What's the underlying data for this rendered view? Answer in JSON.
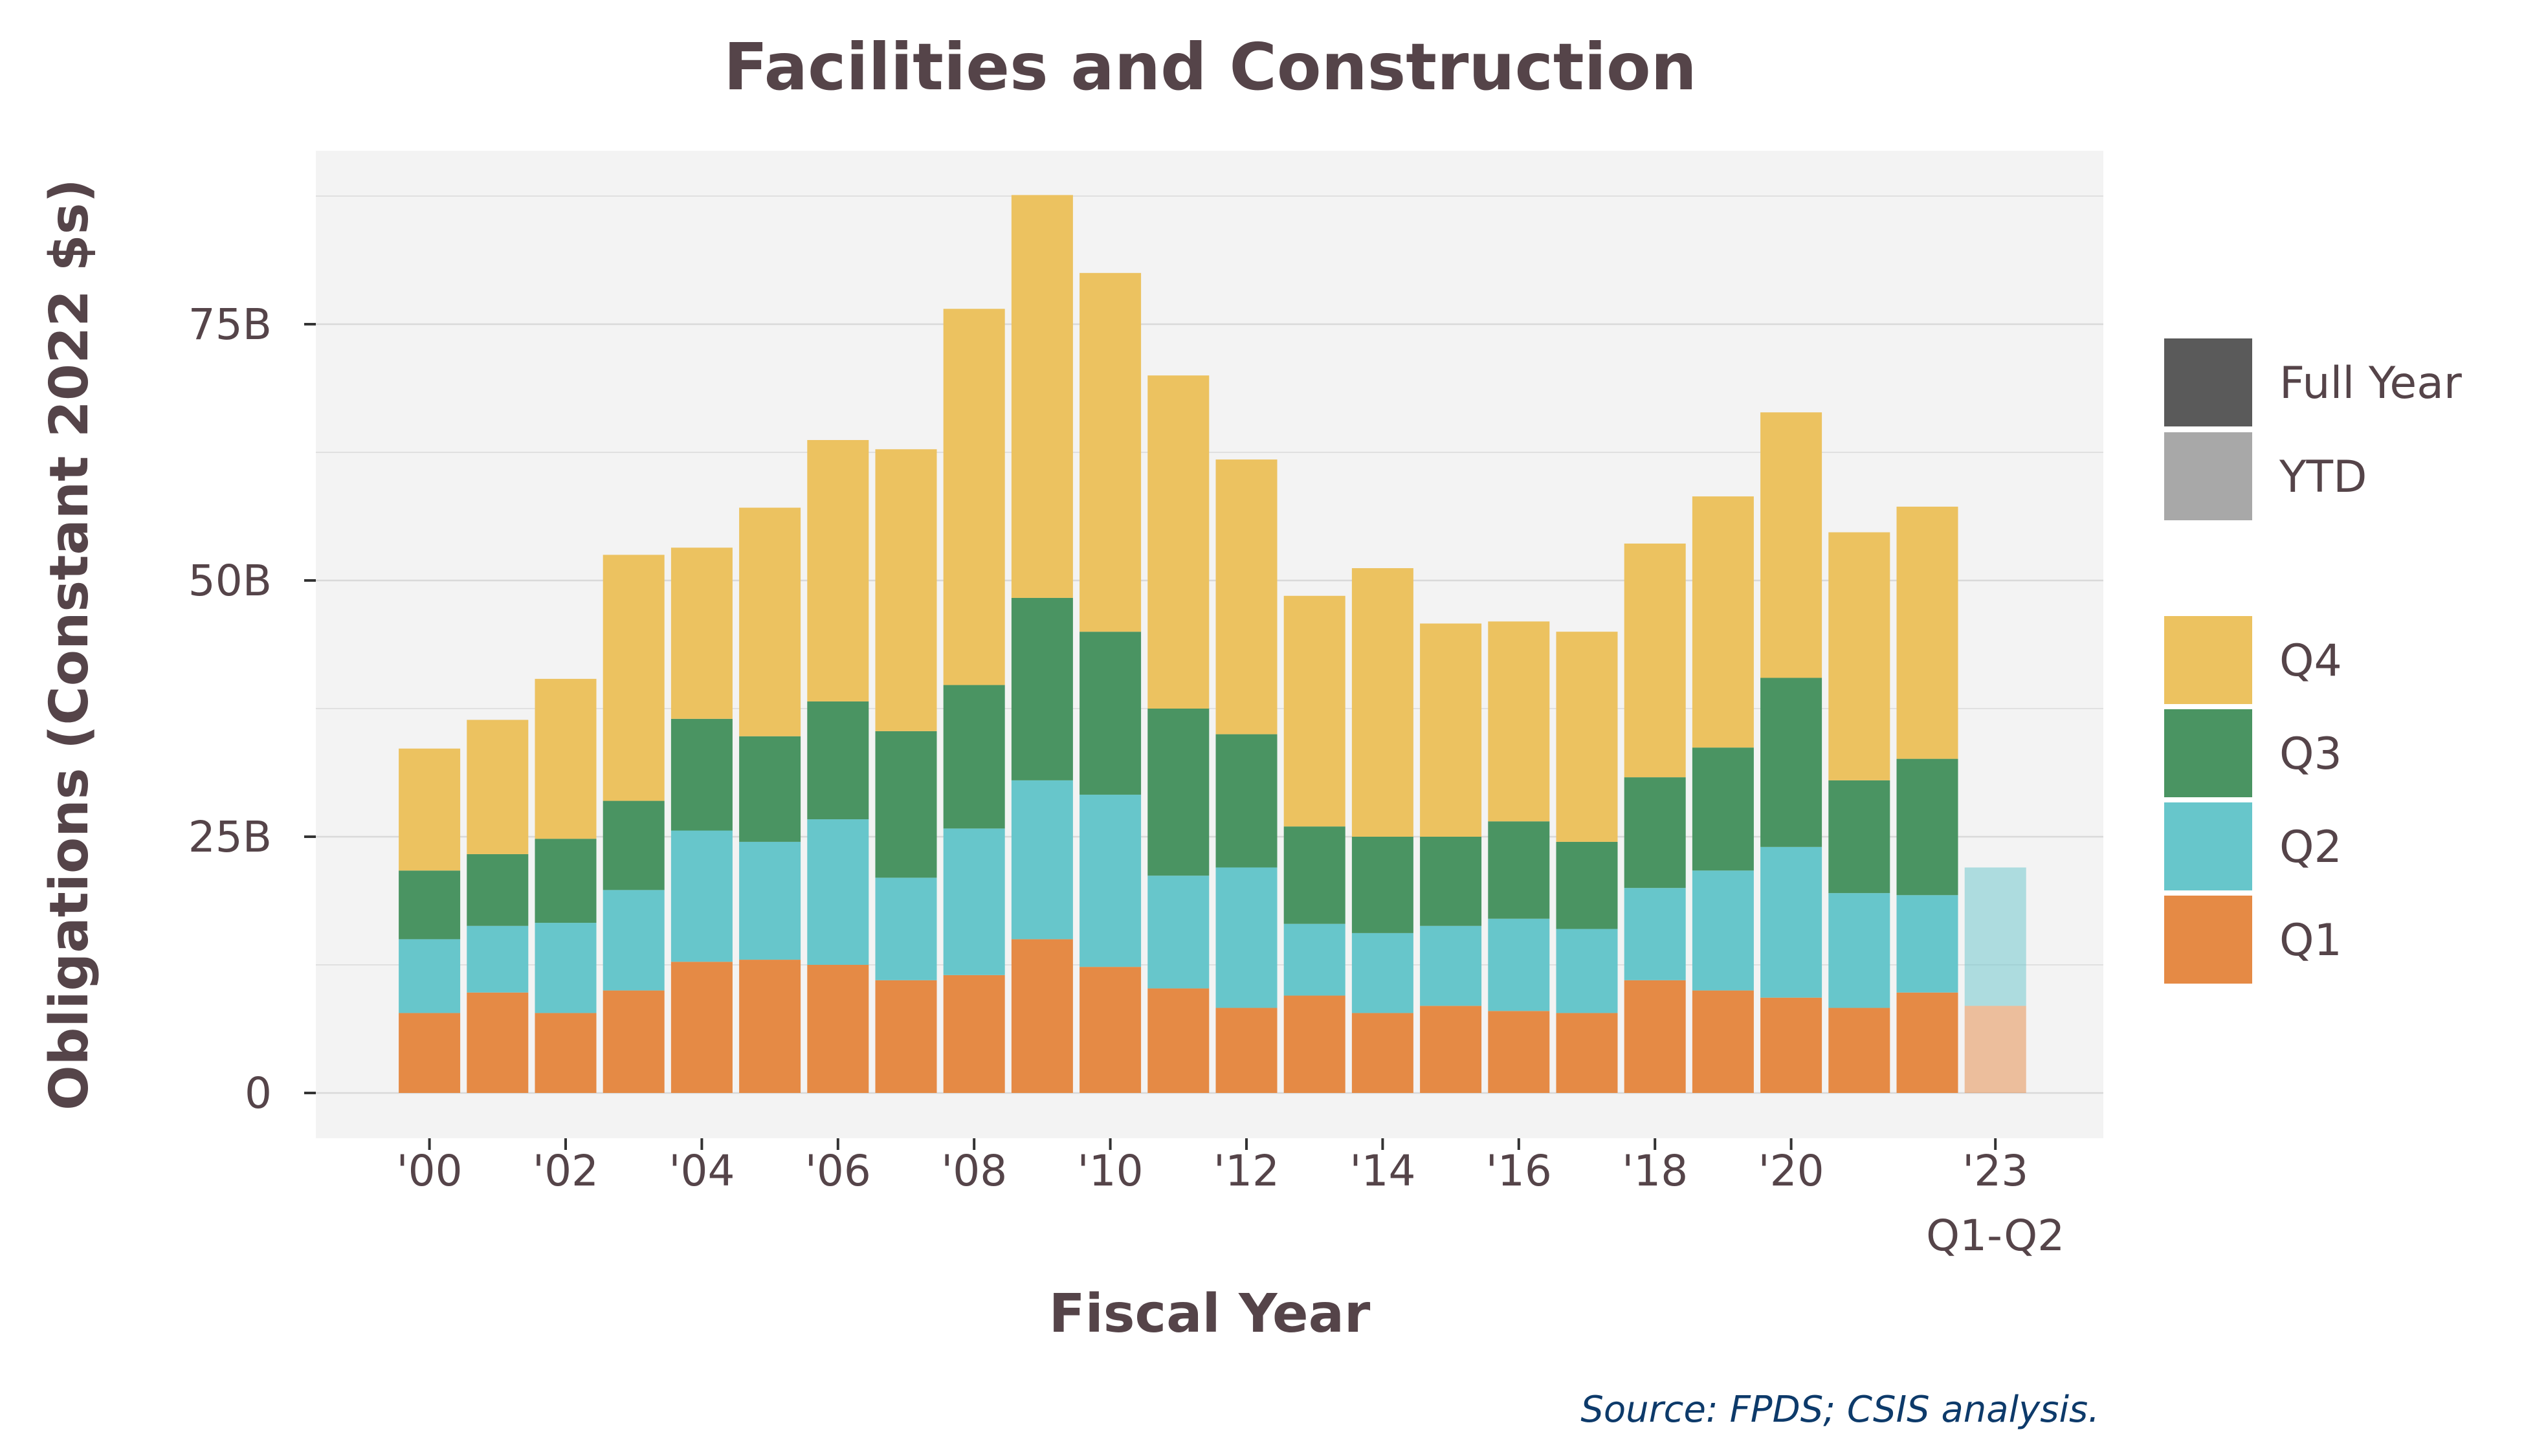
{
  "chart_data": {
    "type": "bar",
    "stacked": true,
    "title": "Facilities and Construction",
    "xlabel": "Fiscal Year",
    "ylabel": "Obligations (Constant 2022 $s)",
    "source": "Source: FPDS; CSIS analysis.",
    "ylim": [
      0,
      90
    ],
    "y_unit": "B",
    "y_ticks": [
      {
        "value": 0,
        "label": "0"
      },
      {
        "value": 25,
        "label": "25B"
      },
      {
        "value": 50,
        "label": "50B"
      },
      {
        "value": 75,
        "label": "75B"
      }
    ],
    "grid": true,
    "legend_position": "right",
    "categories": [
      "2000",
      "2001",
      "2002",
      "2003",
      "2004",
      "2005",
      "2006",
      "2007",
      "2008",
      "2009",
      "2010",
      "2011",
      "2012",
      "2013",
      "2014",
      "2015",
      "2016",
      "2017",
      "2018",
      "2019",
      "2020",
      "2021",
      "2022",
      "2023"
    ],
    "x_tick_labels": [
      {
        "category": "2000",
        "label": "'00"
      },
      {
        "category": "2002",
        "label": "'02"
      },
      {
        "category": "2004",
        "label": "'04"
      },
      {
        "category": "2006",
        "label": "'06"
      },
      {
        "category": "2008",
        "label": "'08"
      },
      {
        "category": "2010",
        "label": "'10"
      },
      {
        "category": "2012",
        "label": "'12"
      },
      {
        "category": "2014",
        "label": "'14"
      },
      {
        "category": "2016",
        "label": "'16"
      },
      {
        "category": "2018",
        "label": "'18"
      },
      {
        "category": "2020",
        "label": "'20"
      },
      {
        "category": "2023",
        "label": "'23",
        "sublabel": "Q1-Q2"
      }
    ],
    "period": [
      "Full Year",
      "Full Year",
      "Full Year",
      "Full Year",
      "Full Year",
      "Full Year",
      "Full Year",
      "Full Year",
      "Full Year",
      "Full Year",
      "Full Year",
      "Full Year",
      "Full Year",
      "Full Year",
      "Full Year",
      "Full Year",
      "Full Year",
      "Full Year",
      "Full Year",
      "Full Year",
      "Full Year",
      "Full Year",
      "Full Year",
      "YTD"
    ],
    "series": [
      {
        "name": "Q1",
        "color": "#e58a45",
        "values": [
          7.8,
          9.8,
          7.8,
          10.0,
          12.8,
          13.0,
          12.5,
          11.0,
          11.5,
          15.0,
          12.3,
          10.2,
          8.3,
          9.5,
          7.8,
          8.5,
          8.0,
          7.8,
          11.0,
          10.0,
          9.3,
          8.3,
          9.8,
          8.5
        ]
      },
      {
        "name": "Q2",
        "color": "#67c6cb",
        "values": [
          7.2,
          6.5,
          8.8,
          9.8,
          12.8,
          11.5,
          14.2,
          10.0,
          14.3,
          15.5,
          16.8,
          11.0,
          13.7,
          7.0,
          7.8,
          7.8,
          9.0,
          8.2,
          9.0,
          11.7,
          14.7,
          11.2,
          9.5,
          13.5
        ]
      },
      {
        "name": "Q3",
        "color": "#4a9462",
        "values": [
          6.7,
          7.0,
          8.2,
          8.7,
          10.9,
          10.3,
          11.5,
          14.3,
          14.0,
          17.8,
          15.9,
          16.3,
          13.0,
          9.5,
          9.4,
          8.7,
          9.5,
          8.5,
          10.8,
          12.0,
          16.5,
          11.0,
          13.3,
          0
        ]
      },
      {
        "name": "Q4",
        "color": "#ecc260",
        "values": [
          11.9,
          13.1,
          15.6,
          24.0,
          16.7,
          22.3,
          25.5,
          27.5,
          36.7,
          39.3,
          35.0,
          32.5,
          26.8,
          22.5,
          26.2,
          20.8,
          19.5,
          20.5,
          22.8,
          24.5,
          25.9,
          24.2,
          24.6,
          0
        ]
      }
    ],
    "legend_period": [
      {
        "label": "Full Year",
        "color": "#5a5a5a"
      },
      {
        "label": "YTD",
        "color": "#a8a8a8"
      }
    ],
    "legend_quarters": [
      "Q4",
      "Q3",
      "Q2",
      "Q1"
    ],
    "colors": {
      "panel": "#f3f3f3",
      "grid": "#d9d9d9",
      "text": "#554449",
      "source": "#0d3a6a"
    }
  }
}
